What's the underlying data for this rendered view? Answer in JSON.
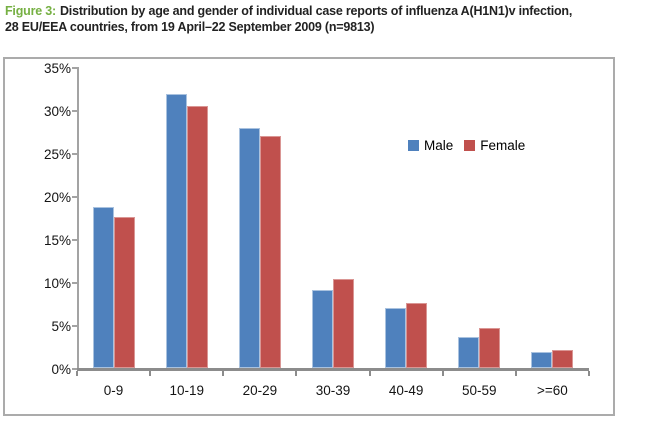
{
  "figure": {
    "label": "Figure 3:",
    "title_line1": "Distribution by age and gender of individual case reports of influenza A(H1N1)v infection,",
    "title_line2": "28 EU/EEA countries, from 19 April–22 September 2009 (n=9813)"
  },
  "colors": {
    "figure_label_green": "#76B043",
    "title_text": "#222222",
    "male_bar": "#4F81BD",
    "female_bar": "#C0504D",
    "x_axis_line": "#8C8C8C",
    "y_axis_line": "#A3A3A3",
    "chart_border": "#ABABAB"
  },
  "chart_data": {
    "type": "bar",
    "title": "",
    "xlabel": "",
    "ylabel": "",
    "categories": [
      "0-9",
      "10-19",
      "20-29",
      "30-39",
      "40-49",
      "50-59",
      ">=60"
    ],
    "series": [
      {
        "name": "Male",
        "color": "#4F81BD",
        "values": [
          18.7,
          31.9,
          27.9,
          9.1,
          7.0,
          3.6,
          1.9
        ]
      },
      {
        "name": "Female",
        "color": "#C0504D",
        "values": [
          17.6,
          30.5,
          27.0,
          10.4,
          7.6,
          4.7,
          2.1
        ]
      }
    ],
    "ylim": [
      0,
      35
    ],
    "y_tick_step": 5,
    "y_tick_labels": [
      "0%",
      "5%",
      "10%",
      "15%",
      "20%",
      "25%",
      "30%",
      "35%"
    ],
    "grid": false,
    "legend": {
      "entries": [
        "Male",
        "Female"
      ],
      "position": "inside-upper-right"
    }
  }
}
